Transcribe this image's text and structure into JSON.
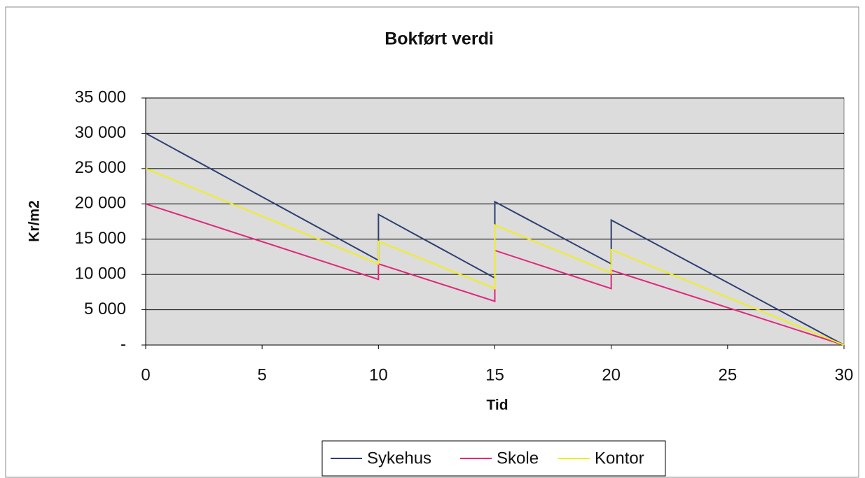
{
  "chart_data": {
    "type": "line",
    "title": "Bokført verdi",
    "x_label": "Tid",
    "y_label": "Kr/m2",
    "x": [
      0,
      10,
      10,
      15,
      15,
      20,
      20,
      30
    ],
    "series": [
      {
        "name": "Sykehus",
        "color": "#2e3f73",
        "values": [
          30000,
          12000,
          18500,
          9500,
          20300,
          11500,
          17700,
          0
        ]
      },
      {
        "name": "Skole",
        "color": "#e0287a",
        "values": [
          20000,
          9300,
          11500,
          6200,
          13400,
          8000,
          10600,
          0
        ]
      },
      {
        "name": "Kontor",
        "color": "#f0ee1e",
        "values": [
          25000,
          11500,
          14700,
          8000,
          17000,
          10200,
          13500,
          0
        ]
      }
    ],
    "xlim": [
      0,
      30
    ],
    "xticks": [
      0,
      5,
      10,
      15,
      20,
      25,
      30
    ],
    "ylim": [
      0,
      35000
    ],
    "yticks": [
      {
        "value": 0,
        "label": "-"
      },
      {
        "value": 5000,
        "label": "5 000"
      },
      {
        "value": 10000,
        "label": "10 000"
      },
      {
        "value": 15000,
        "label": "15 000"
      },
      {
        "value": 20000,
        "label": "20 000"
      },
      {
        "value": 25000,
        "label": "25 000"
      },
      {
        "value": 30000,
        "label": "30 000"
      },
      {
        "value": 35000,
        "label": "35 000"
      }
    ],
    "grid": true,
    "legend": "bottom"
  }
}
